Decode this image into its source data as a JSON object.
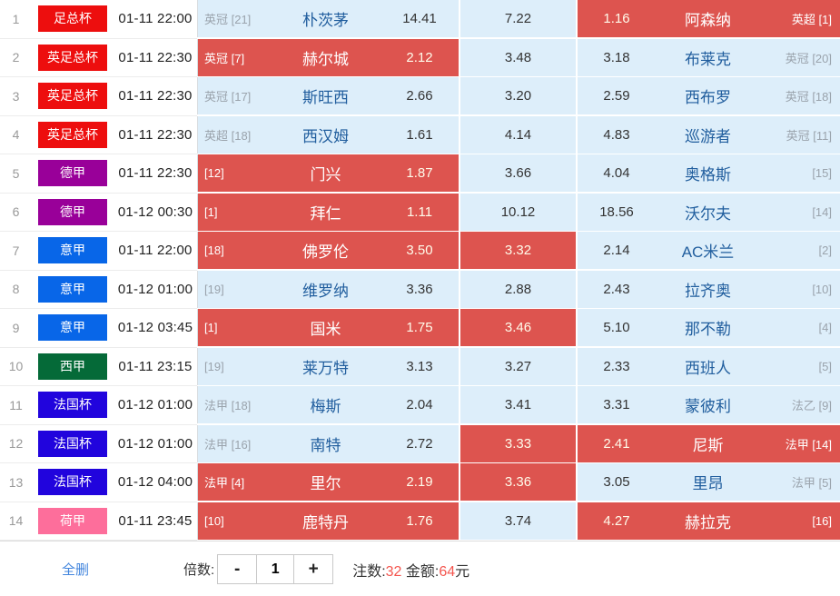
{
  "colors": {
    "selected_cell": "#dd544f",
    "idle_cell": "#ddeefa",
    "team_text": "#215e9e",
    "highlight_number": "#f4564f"
  },
  "table": {
    "rows": [
      {
        "num": "1",
        "league": "足总杯",
        "league_color": "#ed0e0e",
        "time": "01-11 22:00",
        "home_rank": "英冠 [21]",
        "home_team": "朴茨茅",
        "home_odds": "14.41",
        "draw_odds": "7.22",
        "away_odds": "1.16",
        "away_team": "阿森纳",
        "away_rank": "英超 [1]",
        "picks": {
          "home": false,
          "draw": false,
          "away": true
        }
      },
      {
        "num": "2",
        "league": "英足总杯",
        "league_color": "#ed0e0e",
        "time": "01-11 22:30",
        "home_rank": "英冠 [7]",
        "home_team": "赫尔城",
        "home_odds": "2.12",
        "draw_odds": "3.48",
        "away_odds": "3.18",
        "away_team": "布莱克",
        "away_rank": "英冠 [20]",
        "picks": {
          "home": true,
          "draw": false,
          "away": false
        }
      },
      {
        "num": "3",
        "league": "英足总杯",
        "league_color": "#ed0e0e",
        "time": "01-11 22:30",
        "home_rank": "英冠 [17]",
        "home_team": "斯旺西",
        "home_odds": "2.66",
        "draw_odds": "3.20",
        "away_odds": "2.59",
        "away_team": "西布罗",
        "away_rank": "英冠 [18]",
        "picks": {
          "home": false,
          "draw": false,
          "away": false
        }
      },
      {
        "num": "4",
        "league": "英足总杯",
        "league_color": "#ed0e0e",
        "time": "01-11 22:30",
        "home_rank": "英超 [18]",
        "home_team": "西汉姆",
        "home_odds": "1.61",
        "draw_odds": "4.14",
        "away_odds": "4.83",
        "away_team": "巡游者",
        "away_rank": "英冠 [11]",
        "picks": {
          "home": false,
          "draw": false,
          "away": false
        }
      },
      {
        "num": "5",
        "league": "德甲",
        "league_color": "#990099",
        "time": "01-11 22:30",
        "home_rank": "[12]",
        "home_team": "门兴",
        "home_odds": "1.87",
        "draw_odds": "3.66",
        "away_odds": "4.04",
        "away_team": "奥格斯",
        "away_rank": "[15]",
        "picks": {
          "home": true,
          "draw": false,
          "away": false
        }
      },
      {
        "num": "6",
        "league": "德甲",
        "league_color": "#990099",
        "time": "01-12 00:30",
        "home_rank": "[1]",
        "home_team": "拜仁",
        "home_odds": "1.11",
        "draw_odds": "10.12",
        "away_odds": "18.56",
        "away_team": "沃尔夫",
        "away_rank": "[14]",
        "picks": {
          "home": true,
          "draw": false,
          "away": false
        }
      },
      {
        "num": "7",
        "league": "意甲",
        "league_color": "#0866e8",
        "time": "01-11 22:00",
        "home_rank": "[18]",
        "home_team": "佛罗伦",
        "home_odds": "3.50",
        "draw_odds": "3.32",
        "away_odds": "2.14",
        "away_team": "AC米兰",
        "away_rank": "[2]",
        "picks": {
          "home": true,
          "draw": true,
          "away": false
        }
      },
      {
        "num": "8",
        "league": "意甲",
        "league_color": "#0866e8",
        "time": "01-12 01:00",
        "home_rank": "[19]",
        "home_team": "维罗纳",
        "home_odds": "3.36",
        "draw_odds": "2.88",
        "away_odds": "2.43",
        "away_team": "拉齐奥",
        "away_rank": "[10]",
        "picks": {
          "home": false,
          "draw": false,
          "away": false
        }
      },
      {
        "num": "9",
        "league": "意甲",
        "league_color": "#0866e8",
        "time": "01-12 03:45",
        "home_rank": "[1]",
        "home_team": "国米",
        "home_odds": "1.75",
        "draw_odds": "3.46",
        "away_odds": "5.10",
        "away_team": "那不勒",
        "away_rank": "[4]",
        "picks": {
          "home": true,
          "draw": true,
          "away": false
        }
      },
      {
        "num": "10",
        "league": "西甲",
        "league_color": "#056a38",
        "time": "01-11 23:15",
        "home_rank": "[19]",
        "home_team": "莱万特",
        "home_odds": "3.13",
        "draw_odds": "3.27",
        "away_odds": "2.33",
        "away_team": "西班人",
        "away_rank": "[5]",
        "picks": {
          "home": false,
          "draw": false,
          "away": false
        }
      },
      {
        "num": "11",
        "league": "法国杯",
        "league_color": "#2104dd",
        "time": "01-12 01:00",
        "home_rank": "法甲 [18]",
        "home_team": "梅斯",
        "home_odds": "2.04",
        "draw_odds": "3.41",
        "away_odds": "3.31",
        "away_team": "蒙彼利",
        "away_rank": "法乙 [9]",
        "picks": {
          "home": false,
          "draw": false,
          "away": false
        }
      },
      {
        "num": "12",
        "league": "法国杯",
        "league_color": "#2104dd",
        "time": "01-12 01:00",
        "home_rank": "法甲 [16]",
        "home_team": "南特",
        "home_odds": "2.72",
        "draw_odds": "3.33",
        "away_odds": "2.41",
        "away_team": "尼斯",
        "away_rank": "法甲 [14]",
        "picks": {
          "home": false,
          "draw": true,
          "away": true
        }
      },
      {
        "num": "13",
        "league": "法国杯",
        "league_color": "#2104dd",
        "time": "01-12 04:00",
        "home_rank": "法甲 [4]",
        "home_team": "里尔",
        "home_odds": "2.19",
        "draw_odds": "3.36",
        "away_odds": "3.05",
        "away_team": "里昂",
        "away_rank": "法甲 [5]",
        "picks": {
          "home": true,
          "draw": true,
          "away": false
        }
      },
      {
        "num": "14",
        "league": "荷甲",
        "league_color": "#fd6e9b",
        "time": "01-11 23:45",
        "home_rank": "[10]",
        "home_team": "鹿特丹",
        "home_odds": "1.76",
        "draw_odds": "3.74",
        "away_odds": "4.27",
        "away_team": "赫拉克",
        "away_rank": "[16]",
        "picks": {
          "home": true,
          "draw": false,
          "away": true
        }
      }
    ]
  },
  "footer": {
    "delete_all": "全删",
    "multiplier_label": "倍数:",
    "minus": "-",
    "multiplier_value": "1",
    "plus": "+",
    "bets_label": "注数:",
    "bets_value": "32",
    "amount_label": "金额:",
    "amount_value": "64",
    "amount_unit": "元"
  }
}
